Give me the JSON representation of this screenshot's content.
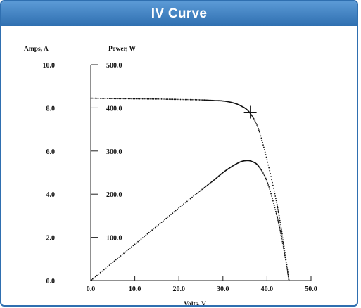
{
  "panel": {
    "title": "IV Curve"
  },
  "chart_data": {
    "type": "line",
    "title": "IV Curve",
    "xlabel": "Volts, V",
    "ylabel": "Amps, A",
    "ylabel2": "Power, W",
    "xlim": [
      0,
      50
    ],
    "ylim": [
      0,
      10
    ],
    "y2lim": [
      0,
      500
    ],
    "grid": false,
    "x_ticks": [
      "0.0",
      "10.0",
      "20.0",
      "30.0",
      "40.0",
      "50.0"
    ],
    "y_ticks": [
      "0.0",
      "2.0",
      "4.0",
      "6.0",
      "8.0",
      "10.0"
    ],
    "y2_ticks": [
      "100.0",
      "200.0",
      "300.0",
      "400.0",
      "500.0"
    ],
    "annotations": [
      {
        "type": "max-power-point-marker",
        "x": 36.2,
        "y": 7.8
      }
    ],
    "series": [
      {
        "axis": "left",
        "values": [
          {
            "x": 0,
            "y": 8.45
          },
          {
            "x": 5,
            "y": 8.43
          },
          {
            "x": 10,
            "y": 8.42
          },
          {
            "x": 15,
            "y": 8.41
          },
          {
            "x": 20,
            "y": 8.39
          },
          {
            "x": 25,
            "y": 8.37
          },
          {
            "x": 28,
            "y": 8.34
          },
          {
            "x": 30,
            "y": 8.32
          },
          {
            "x": 32,
            "y": 8.25
          },
          {
            "x": 34,
            "y": 8.1
          },
          {
            "x": 36,
            "y": 7.8
          },
          {
            "x": 38,
            "y": 7.05
          },
          {
            "x": 40,
            "y": 5.6
          },
          {
            "x": 42,
            "y": 3.8
          },
          {
            "x": 43,
            "y": 2.7
          },
          {
            "x": 44,
            "y": 1.4
          },
          {
            "x": 45,
            "y": 0
          }
        ]
      },
      {
        "axis": "right",
        "values": [
          {
            "x": 0,
            "y": 0
          },
          {
            "x": 5,
            "y": 42
          },
          {
            "x": 10,
            "y": 84
          },
          {
            "x": 15,
            "y": 126
          },
          {
            "x": 20,
            "y": 168
          },
          {
            "x": 25,
            "y": 209
          },
          {
            "x": 28,
            "y": 233
          },
          {
            "x": 30,
            "y": 250
          },
          {
            "x": 32,
            "y": 264
          },
          {
            "x": 34,
            "y": 275
          },
          {
            "x": 35.5,
            "y": 278
          },
          {
            "x": 36.5,
            "y": 276
          },
          {
            "x": 38,
            "y": 266
          },
          {
            "x": 40,
            "y": 230
          },
          {
            "x": 42,
            "y": 160
          },
          {
            "x": 43,
            "y": 116
          },
          {
            "x": 44,
            "y": 62
          },
          {
            "x": 45,
            "y": 0
          }
        ]
      }
    ]
  }
}
